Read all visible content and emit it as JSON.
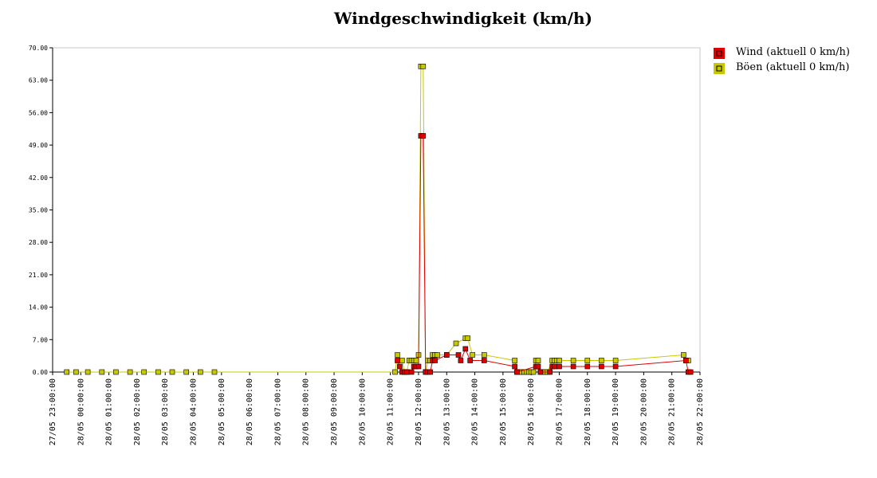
{
  "chart_data": {
    "type": "line",
    "title": "Windgeschwindigkeit (km/h)",
    "ylim": [
      0,
      70
    ],
    "y_ticks": [
      "0.00",
      "7.00",
      "14.00",
      "21.00",
      "28.00",
      "35.00",
      "42.00",
      "49.00",
      "56.00",
      "63.00",
      "70.00"
    ],
    "x_range": [
      "27/05 23:00",
      "28/05 22:00"
    ],
    "x_ticks": [
      "27/05 23:00:00",
      "28/05 00:00:00",
      "28/05 01:00:00",
      "28/05 02:00:00",
      "28/05 03:00:00",
      "28/05 04:00:00",
      "28/05 05:00:00",
      "28/05 06:00:00",
      "28/05 07:00:00",
      "28/05 08:00:00",
      "28/05 09:00:00",
      "28/05 10:00:00",
      "28/05 11:00:00",
      "28/05 12:00:00",
      "28/05 13:00:00",
      "28/05 14:00:00",
      "28/05 15:00:00",
      "28/05 16:00:00",
      "28/05 17:00:00",
      "28/05 18:00:00",
      "28/05 19:00:00",
      "28/05 20:00:00",
      "28/05 21:00:00",
      "28/05 22:00:00"
    ],
    "grid": false,
    "legend_position": "top-right",
    "series": [
      {
        "name": "Wind (aktuell 0 km/h)",
        "color": "#e00000",
        "points": [
          [
            "28/05 11:15",
            2.5
          ],
          [
            "28/05 11:20",
            1.2
          ],
          [
            "28/05 11:25",
            0
          ],
          [
            "28/05 11:30",
            0
          ],
          [
            "28/05 11:35",
            0
          ],
          [
            "28/05 11:45",
            0
          ],
          [
            "28/05 11:50",
            1.2
          ],
          [
            "28/05 11:55",
            1.2
          ],
          [
            "28/05 12:00",
            1.2
          ],
          [
            "28/05 12:05",
            51
          ],
          [
            "28/05 12:10",
            51
          ],
          [
            "28/05 12:15",
            0
          ],
          [
            "28/05 12:20",
            0
          ],
          [
            "28/05 12:25",
            0
          ],
          [
            "28/05 12:30",
            2.5
          ],
          [
            "28/05 12:35",
            2.5
          ],
          [
            "28/05 13:00",
            3.7
          ],
          [
            "28/05 13:25",
            3.7
          ],
          [
            "28/05 13:30",
            2.5
          ],
          [
            "28/05 13:40",
            5
          ],
          [
            "28/05 13:50",
            2.5
          ],
          [
            "28/05 14:20",
            2.5
          ],
          [
            "28/05 15:25",
            1.2
          ],
          [
            "28/05 15:30",
            0
          ],
          [
            "28/05 16:10",
            1.2
          ],
          [
            "28/05 16:15",
            1.2
          ],
          [
            "28/05 16:20",
            0
          ],
          [
            "28/05 16:40",
            0
          ],
          [
            "28/05 16:45",
            1.2
          ],
          [
            "28/05 16:50",
            1.2
          ],
          [
            "28/05 17:00",
            1.2
          ],
          [
            "28/05 17:30",
            1.2
          ],
          [
            "28/05 18:00",
            1.2
          ],
          [
            "28/05 18:30",
            1.2
          ],
          [
            "28/05 19:00",
            1.2
          ],
          [
            "28/05 21:30",
            2.5
          ],
          [
            "28/05 21:35",
            0
          ],
          [
            "28/05 21:40",
            0
          ]
        ]
      },
      {
        "name": "Böen (aktuell 0 km/h)",
        "color": "#c8c800",
        "points": [
          [
            "27/05 23:30",
            0
          ],
          [
            "27/05 23:50",
            0
          ],
          [
            "28/05 00:15",
            0
          ],
          [
            "28/05 00:45",
            0
          ],
          [
            "28/05 01:15",
            0
          ],
          [
            "28/05 01:45",
            0
          ],
          [
            "28/05 02:15",
            0
          ],
          [
            "28/05 02:45",
            0
          ],
          [
            "28/05 03:15",
            0
          ],
          [
            "28/05 03:45",
            0
          ],
          [
            "28/05 04:15",
            0
          ],
          [
            "28/05 04:45",
            0
          ],
          [
            "28/05 11:10",
            0
          ],
          [
            "28/05 11:15",
            3.7
          ],
          [
            "28/05 11:25",
            2.5
          ],
          [
            "28/05 11:30",
            0
          ],
          [
            "28/05 11:35",
            0
          ],
          [
            "28/05 11:40",
            2.5
          ],
          [
            "28/05 11:45",
            2.5
          ],
          [
            "28/05 11:50",
            2.5
          ],
          [
            "28/05 11:55",
            2.5
          ],
          [
            "28/05 12:00",
            3.7
          ],
          [
            "28/05 12:05",
            66
          ],
          [
            "28/05 12:10",
            66
          ],
          [
            "28/05 12:15",
            0
          ],
          [
            "28/05 12:20",
            2.5
          ],
          [
            "28/05 12:25",
            2.5
          ],
          [
            "28/05 12:30",
            3.7
          ],
          [
            "28/05 12:35",
            3.7
          ],
          [
            "28/05 12:40",
            3.7
          ],
          [
            "28/05 13:00",
            3.7
          ],
          [
            "28/05 13:20",
            6.2
          ],
          [
            "28/05 13:40",
            7.3
          ],
          [
            "28/05 13:45",
            7.3
          ],
          [
            "28/05 13:55",
            3.7
          ],
          [
            "28/05 14:20",
            3.7
          ],
          [
            "28/05 15:25",
            2.5
          ],
          [
            "28/05 15:30",
            0
          ],
          [
            "28/05 15:35",
            0
          ],
          [
            "28/05 15:40",
            0
          ],
          [
            "28/05 15:45",
            0
          ],
          [
            "28/05 15:50",
            0
          ],
          [
            "28/05 15:55",
            0
          ],
          [
            "28/05 16:00",
            0
          ],
          [
            "28/05 16:05",
            0
          ],
          [
            "28/05 16:10",
            2.5
          ],
          [
            "28/05 16:15",
            2.5
          ],
          [
            "28/05 16:20",
            0
          ],
          [
            "28/05 16:25",
            0
          ],
          [
            "28/05 16:30",
            0
          ],
          [
            "28/05 16:35",
            0
          ],
          [
            "28/05 16:45",
            2.5
          ],
          [
            "28/05 16:50",
            2.5
          ],
          [
            "28/05 16:55",
            2.5
          ],
          [
            "28/05 17:00",
            2.5
          ],
          [
            "28/05 17:30",
            2.5
          ],
          [
            "28/05 18:00",
            2.5
          ],
          [
            "28/05 18:30",
            2.5
          ],
          [
            "28/05 19:00",
            2.5
          ],
          [
            "28/05 21:25",
            3.7
          ],
          [
            "28/05 21:30",
            2.5
          ],
          [
            "28/05 21:35",
            2.5
          ]
        ]
      }
    ]
  }
}
